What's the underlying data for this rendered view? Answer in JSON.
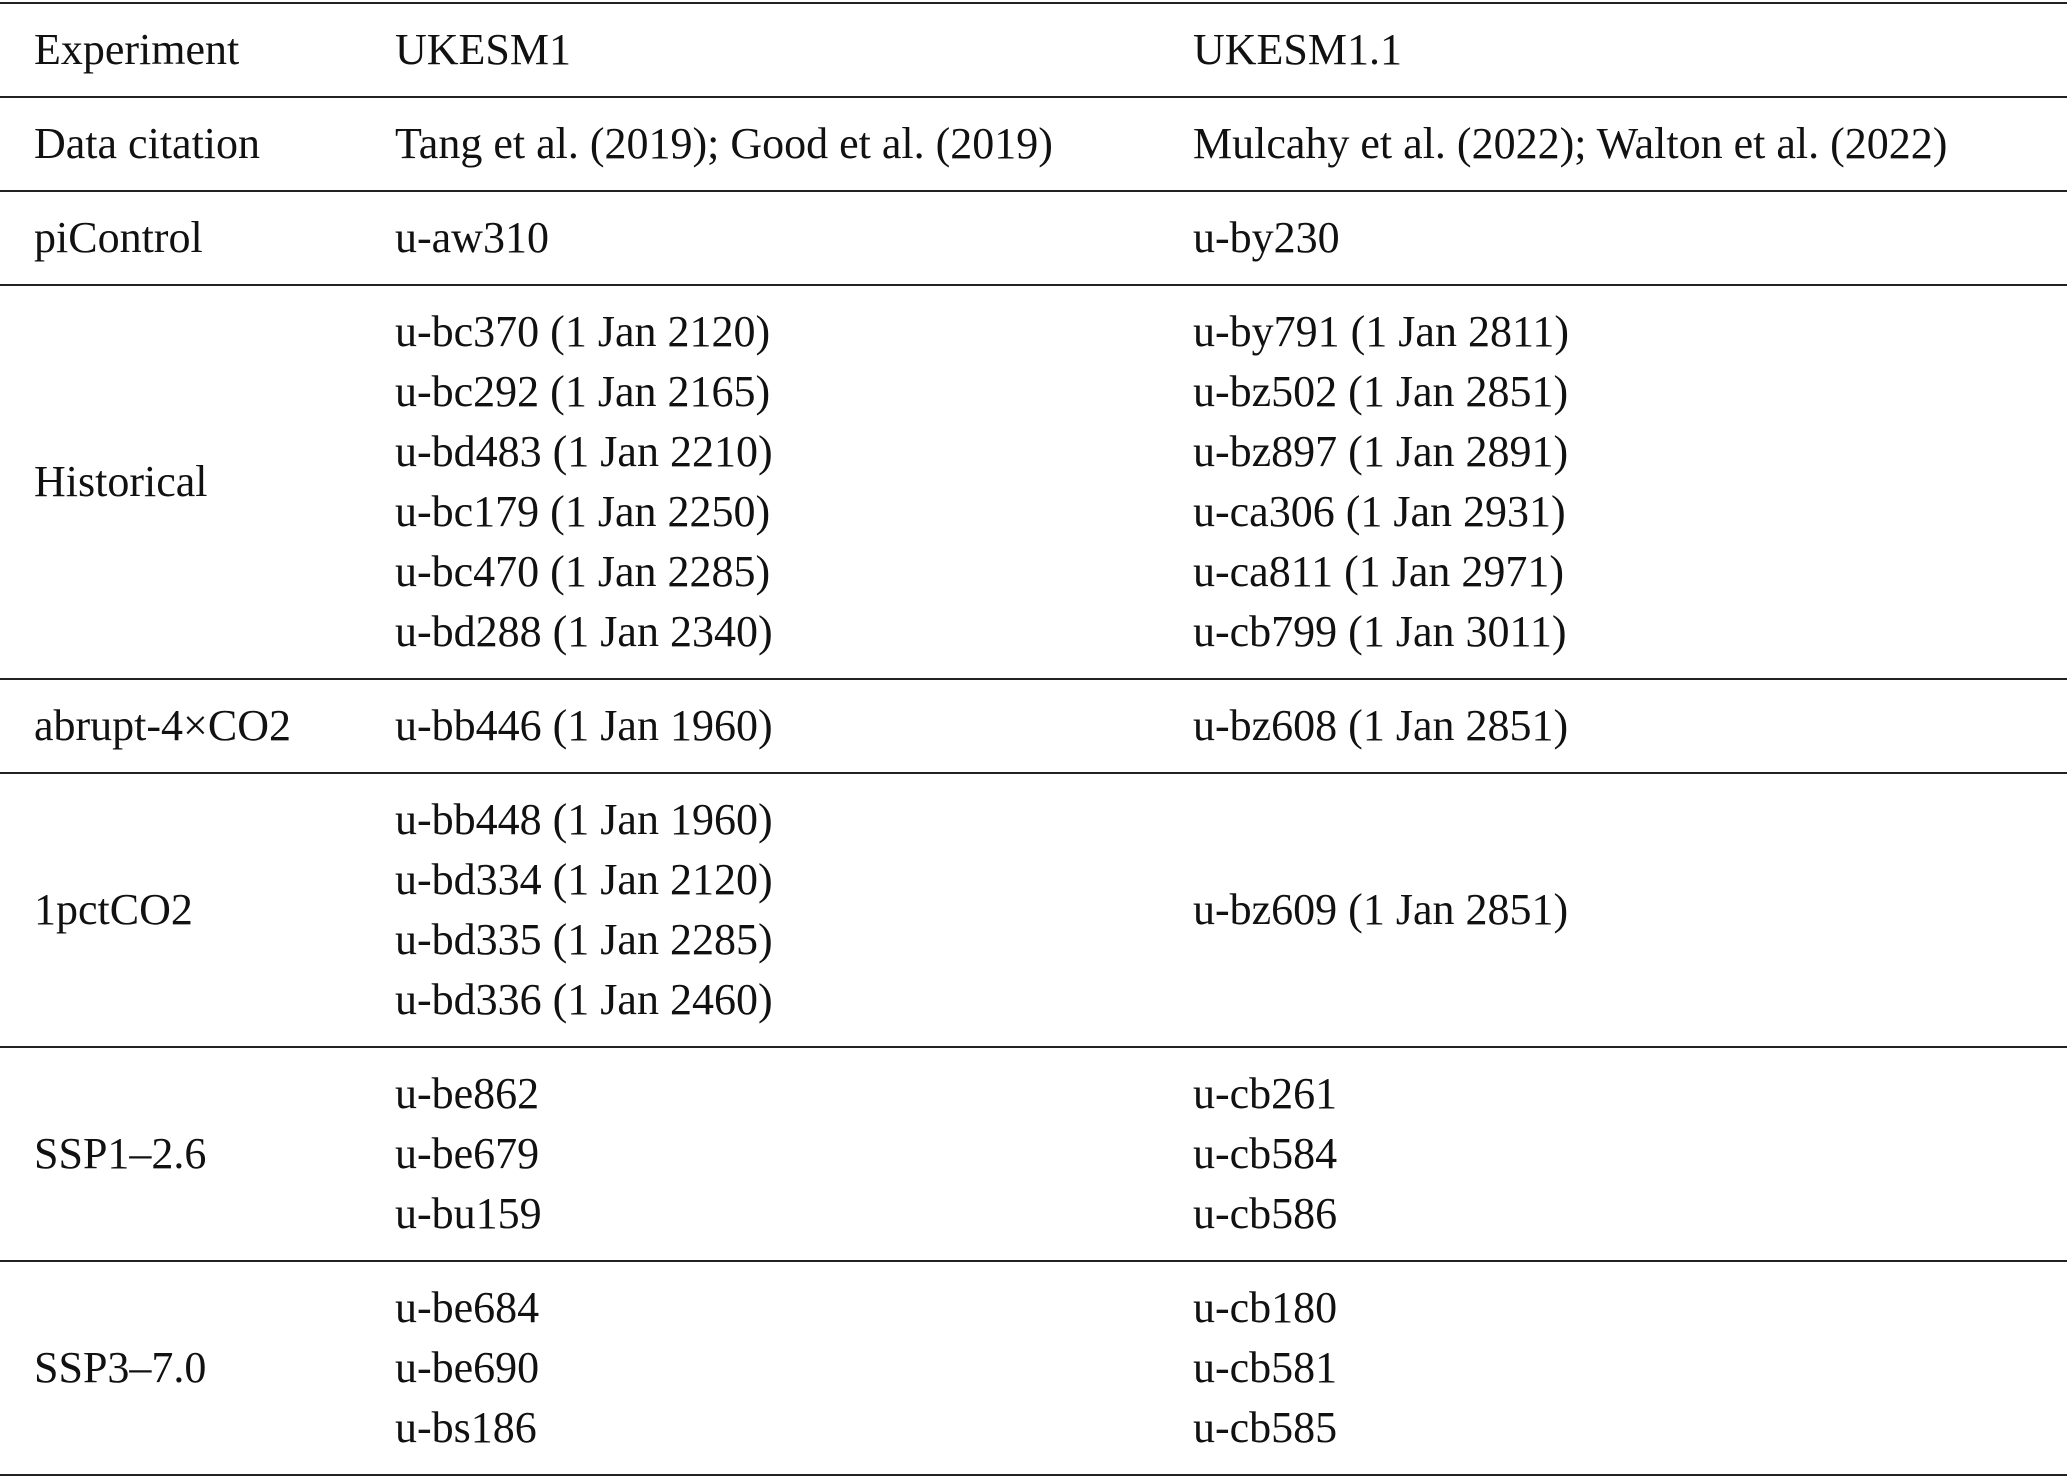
{
  "table": {
    "header": [
      "Experiment",
      "UKESM1",
      "UKESM1.1"
    ],
    "rows": [
      [
        [
          "Data citation"
        ],
        [
          "Tang et al. (2019); Good et al. (2019)"
        ],
        [
          "Mulcahy et al. (2022); Walton et al. (2022)"
        ]
      ],
      [
        [
          "piControl"
        ],
        [
          "u-aw310"
        ],
        [
          "u-by230"
        ]
      ],
      [
        [
          "Historical"
        ],
        [
          "u-bc370 (1 Jan 2120)",
          "u-bc292 (1 Jan 2165)",
          "u-bd483 (1 Jan 2210)",
          "u-bc179 (1 Jan 2250)",
          "u-bc470 (1 Jan 2285)",
          "u-bd288 (1 Jan 2340)"
        ],
        [
          "u-by791 (1 Jan 2811)",
          "u-bz502 (1 Jan 2851)",
          "u-bz897 (1 Jan 2891)",
          "u-ca306 (1 Jan 2931)",
          "u-ca811 (1 Jan 2971)",
          "u-cb799 (1 Jan 3011)"
        ]
      ],
      [
        [
          "abrupt-4×CO2"
        ],
        [
          "u-bb446 (1 Jan 1960)"
        ],
        [
          "u-bz608 (1 Jan 2851)"
        ]
      ],
      [
        [
          "1pctCO2"
        ],
        [
          "u-bb448 (1 Jan 1960)",
          "u-bd334 (1 Jan 2120)",
          "u-bd335 (1 Jan 2285)",
          "u-bd336 (1 Jan 2460)"
        ],
        [
          "u-bz609 (1 Jan 2851)"
        ]
      ],
      [
        [
          "SSP1–2.6"
        ],
        [
          "u-be862",
          "u-be679",
          "u-bu159"
        ],
        [
          "u-cb261",
          "u-cb584",
          "u-cb586"
        ]
      ],
      [
        [
          "SSP3–7.0"
        ],
        [
          "u-be684",
          "u-be690",
          "u-bs186"
        ],
        [
          "u-cb180",
          "u-cb581",
          "u-cb585"
        ]
      ]
    ]
  }
}
